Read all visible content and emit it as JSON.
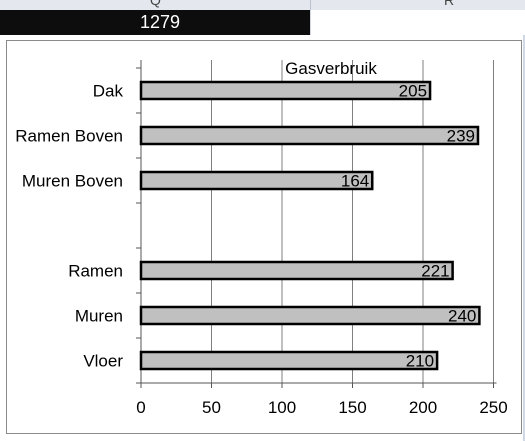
{
  "sheet": {
    "columns": [
      "Q",
      "R"
    ],
    "cell_value": "1279"
  },
  "chart_data": {
    "type": "bar",
    "orientation": "horizontal",
    "title": "Gasverbruik",
    "categories": [
      "Dak",
      "Ramen Boven",
      "Muren Boven",
      "",
      "Ramen",
      "Muren",
      "Vloer"
    ],
    "values": [
      205,
      239,
      164,
      null,
      221,
      240,
      210
    ],
    "data_labels": [
      "205",
      "239",
      "164",
      "",
      "221",
      "240",
      "210"
    ],
    "xlim": [
      0,
      250
    ],
    "x_ticks": [
      0,
      50,
      100,
      150,
      200,
      250
    ],
    "grid": true,
    "legend": "none",
    "colors": {
      "bar_fill": "#c0c0c0",
      "bar_edge": "#000000",
      "grid": "#7f7f7f"
    }
  }
}
